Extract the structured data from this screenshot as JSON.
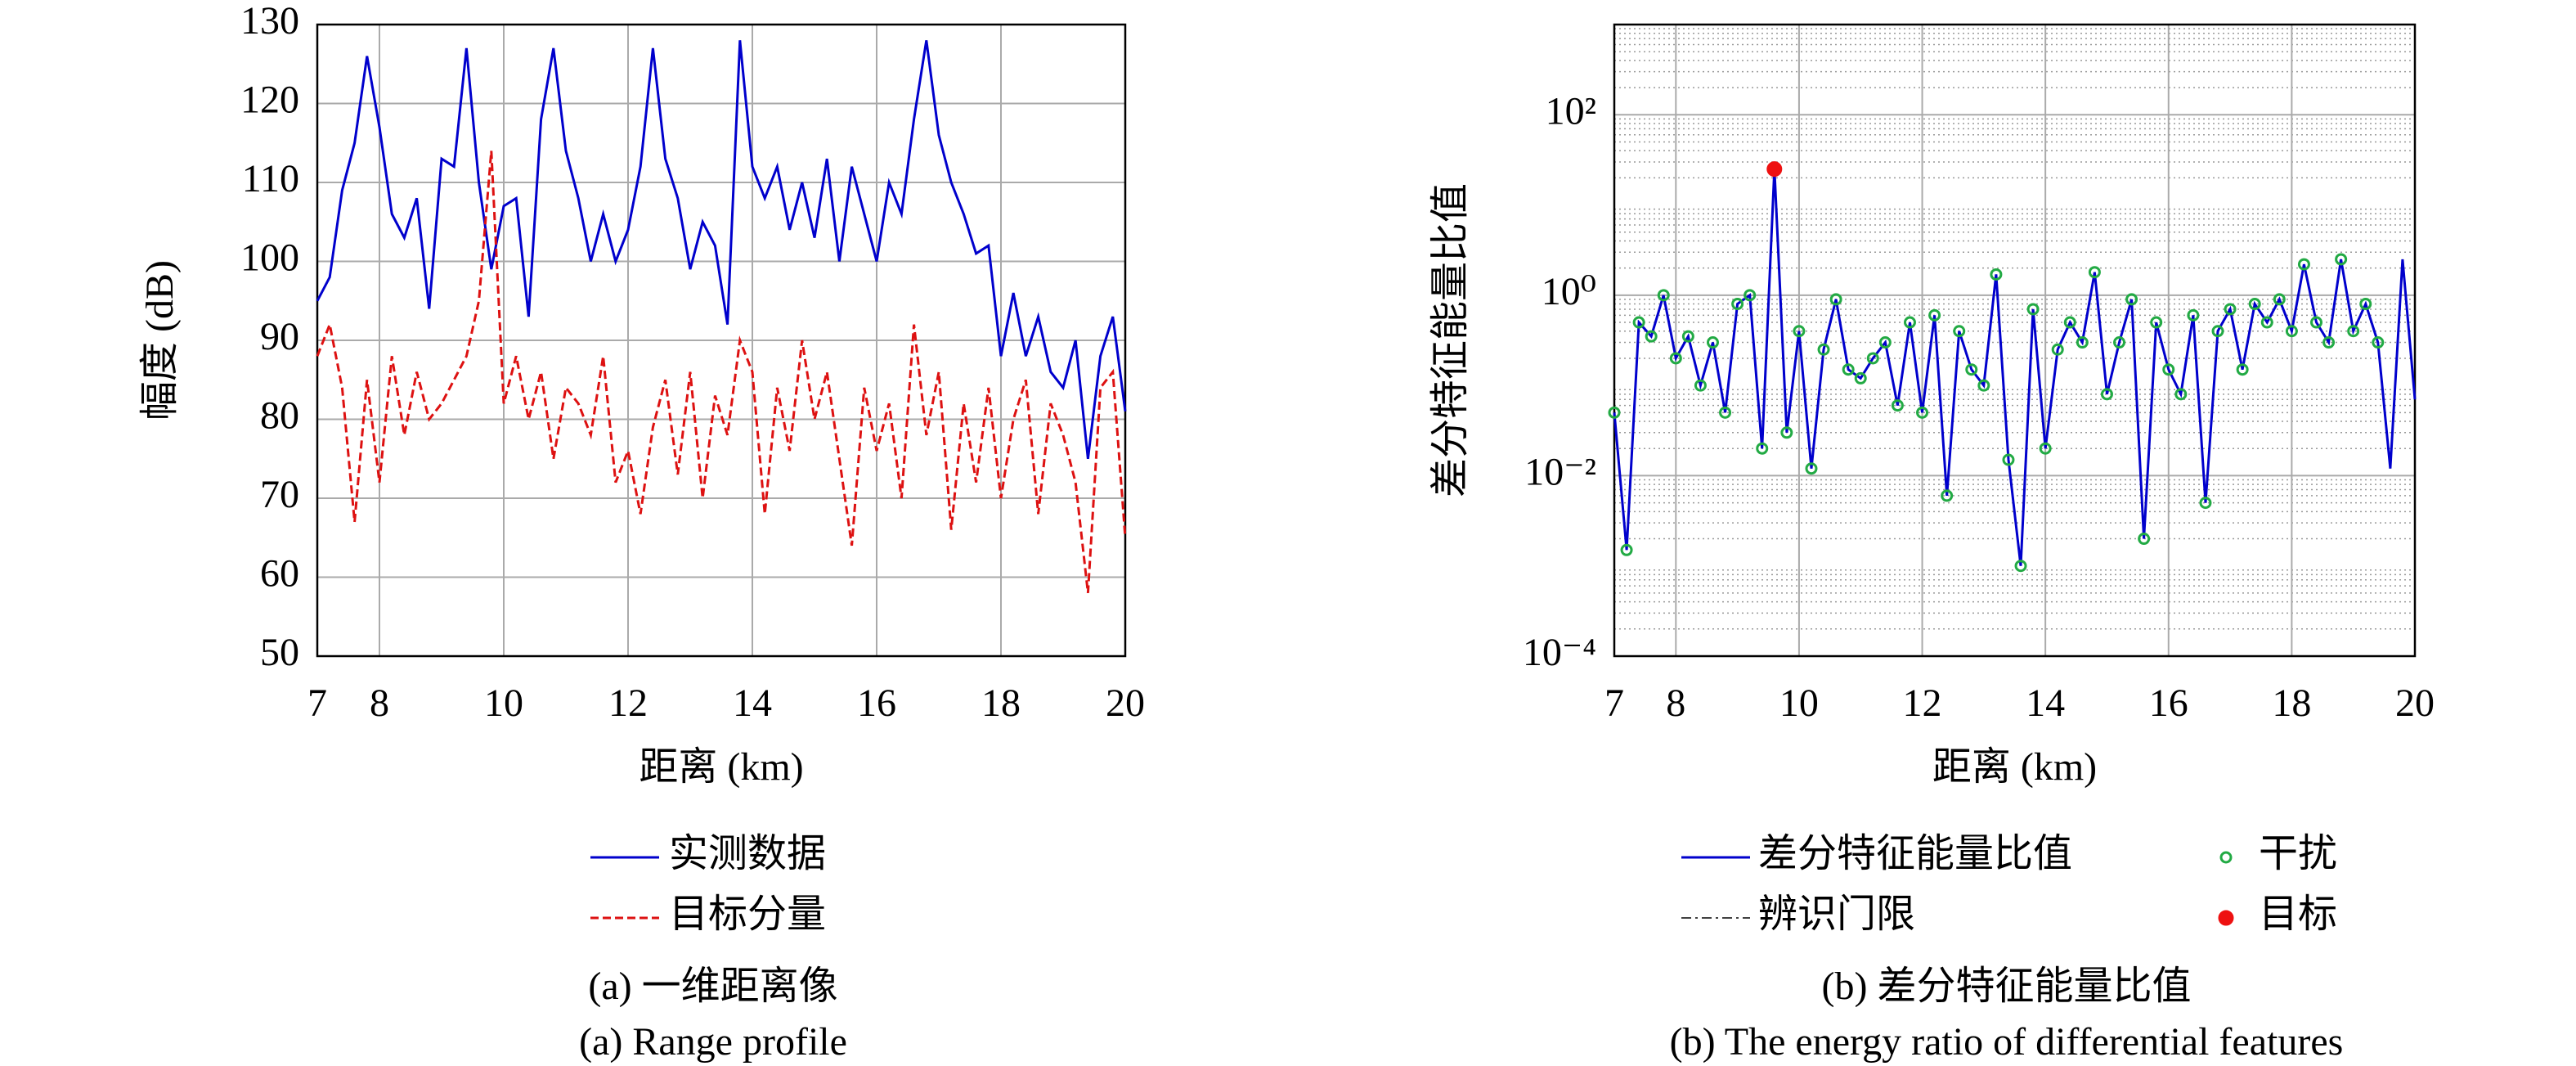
{
  "chart_data": [
    {
      "type": "line",
      "x_label": "距离 (km)",
      "y_label": "幅度 (dB)",
      "caption": [
        "(a) 一维距离像",
        "(a) Range profile"
      ],
      "x": [
        7.0,
        7.2,
        7.4,
        7.6,
        7.8,
        8.0,
        8.2,
        8.4,
        8.6,
        8.8,
        9.0,
        9.2,
        9.4,
        9.6,
        9.8,
        10.0,
        10.2,
        10.4,
        10.6,
        10.8,
        11.0,
        11.2,
        11.4,
        11.6,
        11.8,
        12.0,
        12.2,
        12.4,
        12.6,
        12.8,
        13.0,
        13.2,
        13.4,
        13.6,
        13.8,
        14.0,
        14.2,
        14.4,
        14.6,
        14.8,
        15.0,
        15.2,
        15.4,
        15.6,
        15.8,
        16.0,
        16.2,
        16.4,
        16.6,
        16.8,
        17.0,
        17.2,
        17.4,
        17.6,
        17.8,
        18.0,
        18.2,
        18.4,
        18.6,
        18.8,
        19.0,
        19.2,
        19.4,
        19.6,
        19.8,
        20.0
      ],
      "series": [
        {
          "name": "实测数据",
          "color": "#0000cc",
          "dash": "solid",
          "values": [
            95,
            98,
            109,
            115,
            126,
            117,
            106,
            103,
            108,
            94,
            113,
            112,
            127,
            110,
            99,
            107,
            108,
            93,
            118,
            127,
            114,
            108,
            100,
            106,
            100,
            104,
            112,
            127,
            113,
            108,
            99,
            105,
            102,
            92,
            128,
            112,
            108,
            112,
            104,
            110,
            103,
            113,
            100,
            112,
            106,
            100,
            110,
            106,
            118,
            128,
            116,
            110,
            106,
            101,
            102,
            88,
            96,
            88,
            93,
            86,
            84,
            90,
            75,
            88,
            93,
            81
          ]
        },
        {
          "name": "目标分量",
          "color": "#dd1111",
          "dash": "dashed",
          "values": [
            88,
            92,
            84,
            67,
            85,
            72,
            88,
            78,
            86,
            80,
            82,
            85,
            88,
            95,
            114,
            82,
            88,
            80,
            86,
            75,
            84,
            82,
            78,
            88,
            72,
            76,
            68,
            79,
            85,
            73,
            86,
            70,
            83,
            78,
            90,
            86,
            68,
            84,
            76,
            90,
            80,
            86,
            75,
            64,
            84,
            76,
            82,
            70,
            92,
            78,
            86,
            66,
            82,
            72,
            84,
            70,
            80,
            85,
            68,
            82,
            78,
            72,
            58,
            84,
            86,
            65
          ]
        }
      ],
      "xlim": [
        7,
        20
      ],
      "xticks": [
        7,
        8,
        10,
        12,
        14,
        16,
        18,
        20
      ],
      "ylim": [
        50,
        130
      ],
      "yticks": [
        50,
        60,
        70,
        80,
        90,
        100,
        110,
        120,
        130
      ],
      "grid": true,
      "log_y": false
    },
    {
      "type": "line",
      "x_label": "距离 (km)",
      "y_label": "差分特征能量比值",
      "caption": [
        "(b) 差分特征能量比值",
        "(b) The energy ratio of differential features"
      ],
      "x": [
        7.0,
        7.2,
        7.4,
        7.6,
        7.8,
        8.0,
        8.2,
        8.4,
        8.6,
        8.8,
        9.0,
        9.2,
        9.4,
        9.6,
        9.8,
        10.0,
        10.2,
        10.4,
        10.6,
        10.8,
        11.0,
        11.2,
        11.4,
        11.6,
        11.8,
        12.0,
        12.2,
        12.4,
        12.6,
        12.8,
        13.0,
        13.2,
        13.4,
        13.6,
        13.8,
        14.0,
        14.2,
        14.4,
        14.6,
        14.8,
        15.0,
        15.2,
        15.4,
        15.6,
        15.8,
        16.0,
        16.2,
        16.4,
        16.6,
        16.8,
        17.0,
        17.2,
        17.4,
        17.6,
        17.8,
        18.0,
        18.2,
        18.4,
        18.6,
        18.8,
        19.0,
        19.2,
        19.4,
        19.6,
        19.8,
        20.0
      ],
      "series": [
        {
          "name": "差分特征能量比值",
          "color": "#0000cc",
          "dash": "solid",
          "values": [
            0.05,
            0.0015,
            0.5,
            0.35,
            1.0,
            0.2,
            0.35,
            0.1,
            0.3,
            0.05,
            0.8,
            1.0,
            0.02,
            25,
            0.03,
            0.4,
            0.012,
            0.25,
            0.9,
            0.15,
            0.12,
            0.2,
            0.3,
            0.06,
            0.5,
            0.05,
            0.6,
            0.006,
            0.4,
            0.15,
            0.1,
            1.7,
            0.015,
            0.001,
            0.7,
            0.02,
            0.25,
            0.5,
            0.3,
            1.8,
            0.08,
            0.3,
            0.9,
            0.002,
            0.5,
            0.15,
            0.08,
            0.6,
            0.005,
            0.4,
            0.7,
            0.15,
            0.8,
            0.5,
            0.9,
            0.4,
            2.2,
            0.5,
            0.3,
            2.5,
            0.4,
            0.8,
            0.3,
            0.012,
            2.5,
            0.07
          ]
        },
        {
          "name": "干扰",
          "color": "#22aa44",
          "marker": "hollow",
          "x": [
            7.0,
            7.2,
            7.4,
            7.6,
            7.8,
            8.0,
            8.2,
            8.4,
            8.6,
            8.8,
            9.0,
            9.2,
            9.4,
            9.8,
            10.0,
            10.2,
            10.4,
            10.6,
            10.8,
            11.0,
            11.2,
            11.4,
            11.6,
            11.8,
            12.0,
            12.2,
            12.4,
            12.6,
            12.8,
            13.0,
            13.2,
            13.4,
            13.6,
            13.8,
            14.0,
            14.2,
            14.4,
            14.6,
            14.8,
            15.0,
            15.2,
            15.4,
            15.6,
            15.8,
            16.0,
            16.2,
            16.4,
            16.6,
            16.8,
            17.0,
            17.2,
            17.4,
            17.6,
            17.8,
            18.0,
            18.2,
            18.4,
            18.6,
            18.8,
            19.0,
            19.2,
            19.4
          ],
          "values": [
            0.05,
            0.0015,
            0.5,
            0.35,
            1.0,
            0.2,
            0.35,
            0.1,
            0.3,
            0.05,
            0.8,
            1.0,
            0.02,
            0.03,
            0.4,
            0.012,
            0.25,
            0.9,
            0.15,
            0.12,
            0.2,
            0.3,
            0.06,
            0.5,
            0.05,
            0.6,
            0.006,
            0.4,
            0.15,
            0.1,
            1.7,
            0.015,
            0.001,
            0.7,
            0.02,
            0.25,
            0.5,
            0.3,
            1.8,
            0.08,
            0.3,
            0.9,
            0.002,
            0.5,
            0.15,
            0.08,
            0.6,
            0.005,
            0.4,
            0.7,
            0.15,
            0.8,
            0.5,
            0.9,
            0.4,
            2.2,
            0.5,
            0.3,
            2.5,
            0.4,
            0.8,
            0.3
          ]
        },
        {
          "name": "目标",
          "color": "#ee1111",
          "marker": "filled",
          "x": [
            9.6
          ],
          "values": [
            25
          ]
        }
      ],
      "threshold": {
        "name": "辨识门限",
        "color": "#000000"
      },
      "xlim": [
        7,
        20
      ],
      "xticks": [
        7,
        8,
        10,
        12,
        14,
        16,
        18,
        20
      ],
      "ylim": [
        0.0001,
        1000
      ],
      "yticks": [
        {
          "value": 0.0001,
          "label": "10⁻⁴"
        },
        {
          "value": 0.01,
          "label": "10⁻²"
        },
        {
          "value": 1,
          "label": "10⁰"
        },
        {
          "value": 100,
          "label": "10²"
        }
      ],
      "grid": true,
      "log_y": true,
      "minor_grid": true
    }
  ]
}
